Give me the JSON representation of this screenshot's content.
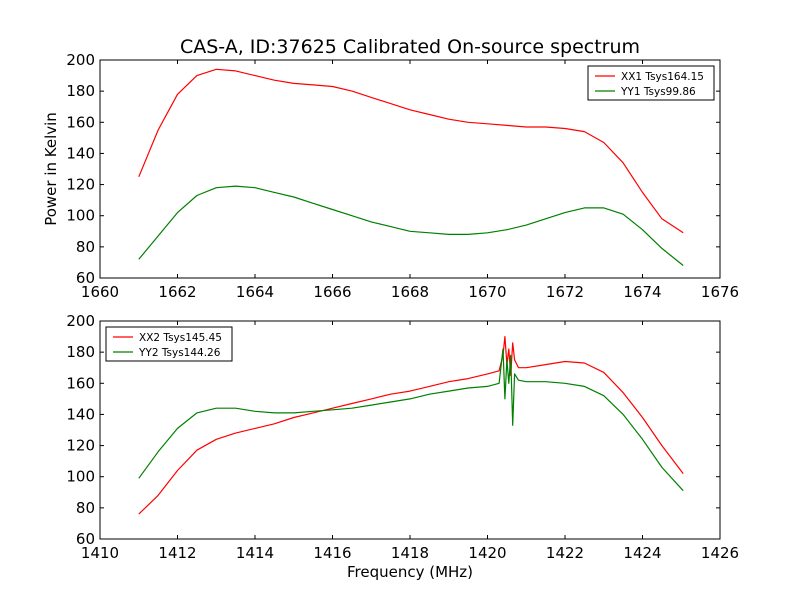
{
  "figure": {
    "title": "CAS-A, ID:37625 Calibrated On-source spectrum",
    "ylabel": "Power in Kelvin",
    "xlabel": "Frequency (MHz)"
  },
  "chart_data": [
    {
      "type": "line",
      "xlim": [
        1660,
        1676
      ],
      "ylim": [
        60,
        200
      ],
      "xticks": [
        1660,
        1662,
        1664,
        1666,
        1668,
        1670,
        1672,
        1674,
        1676
      ],
      "yticks": [
        60,
        80,
        100,
        120,
        140,
        160,
        180,
        200
      ],
      "legend_position": "top-right",
      "series": [
        {
          "name": "XX1 Tsys164.15",
          "color": "#ff0000",
          "x": [
            1661.0,
            1661.5,
            1662.0,
            1662.5,
            1663.0,
            1663.5,
            1664.0,
            1664.5,
            1665.0,
            1665.5,
            1666.0,
            1666.5,
            1667.0,
            1667.5,
            1668.0,
            1668.5,
            1669.0,
            1669.5,
            1670.0,
            1670.5,
            1671.0,
            1671.5,
            1672.0,
            1672.5,
            1673.0,
            1673.5,
            1674.0,
            1674.5,
            1675.05
          ],
          "y": [
            125,
            155,
            178,
            190,
            194,
            193,
            190,
            187,
            185,
            184,
            183,
            180,
            176,
            172,
            168,
            165,
            162,
            160,
            159,
            158,
            157,
            157,
            156,
            154,
            147,
            134,
            115,
            98,
            89
          ]
        },
        {
          "name": "YY1 Tsys99.86",
          "color": "#008000",
          "x": [
            1661.0,
            1661.5,
            1662.0,
            1662.5,
            1663.0,
            1663.5,
            1664.0,
            1664.5,
            1665.0,
            1665.5,
            1666.0,
            1666.5,
            1667.0,
            1667.5,
            1668.0,
            1668.5,
            1669.0,
            1669.5,
            1670.0,
            1670.5,
            1671.0,
            1671.5,
            1672.0,
            1672.5,
            1673.0,
            1673.5,
            1674.0,
            1674.5,
            1675.05
          ],
          "y": [
            72,
            87,
            102,
            113,
            118,
            119,
            118,
            115,
            112,
            108,
            104,
            100,
            96,
            93,
            90,
            89,
            88,
            88,
            89,
            91,
            94,
            98,
            102,
            105,
            105,
            101,
            91,
            79,
            68
          ]
        }
      ]
    },
    {
      "type": "line",
      "xlim": [
        1410,
        1426
      ],
      "ylim": [
        60,
        200
      ],
      "xticks": [
        1410,
        1412,
        1414,
        1416,
        1418,
        1420,
        1422,
        1424,
        1426
      ],
      "yticks": [
        60,
        80,
        100,
        120,
        140,
        160,
        180,
        200
      ],
      "legend_position": "top-left",
      "series": [
        {
          "name": "XX2 Tsys145.45",
          "color": "#ff0000",
          "x": [
            1411.0,
            1411.5,
            1412.0,
            1412.5,
            1413.0,
            1413.5,
            1414.0,
            1414.5,
            1415.0,
            1415.5,
            1416.0,
            1416.5,
            1417.0,
            1417.5,
            1418.0,
            1418.5,
            1419.0,
            1419.5,
            1420.0,
            1420.3,
            1420.4,
            1420.45,
            1420.5,
            1420.55,
            1420.6,
            1420.65,
            1420.7,
            1420.8,
            1421.0,
            1421.5,
            1422.0,
            1422.5,
            1423.0,
            1423.5,
            1424.0,
            1424.5,
            1425.05
          ],
          "y": [
            76,
            88,
            104,
            117,
            124,
            128,
            131,
            134,
            138,
            141,
            144,
            147,
            150,
            153,
            155,
            158,
            161,
            163,
            166,
            168,
            178,
            190,
            172,
            182,
            165,
            186,
            175,
            170,
            170,
            172,
            174,
            173,
            167,
            154,
            138,
            120,
            102
          ]
        },
        {
          "name": "YY2 Tsys144.26",
          "color": "#008000",
          "x": [
            1411.0,
            1411.5,
            1412.0,
            1412.5,
            1413.0,
            1413.5,
            1414.0,
            1414.5,
            1415.0,
            1415.5,
            1416.0,
            1416.5,
            1417.0,
            1417.5,
            1418.0,
            1418.5,
            1419.0,
            1419.5,
            1420.0,
            1420.3,
            1420.4,
            1420.45,
            1420.5,
            1420.55,
            1420.6,
            1420.65,
            1420.7,
            1420.8,
            1421.0,
            1421.5,
            1422.0,
            1422.5,
            1423.0,
            1423.5,
            1424.0,
            1424.5,
            1425.05
          ],
          "y": [
            99,
            116,
            131,
            141,
            144,
            144,
            142,
            141,
            141,
            142,
            143,
            144,
            146,
            148,
            150,
            153,
            155,
            157,
            158,
            160,
            182,
            150,
            175,
            160,
            178,
            133,
            166,
            162,
            161,
            161,
            160,
            158,
            152,
            140,
            124,
            106,
            91
          ]
        }
      ]
    }
  ]
}
